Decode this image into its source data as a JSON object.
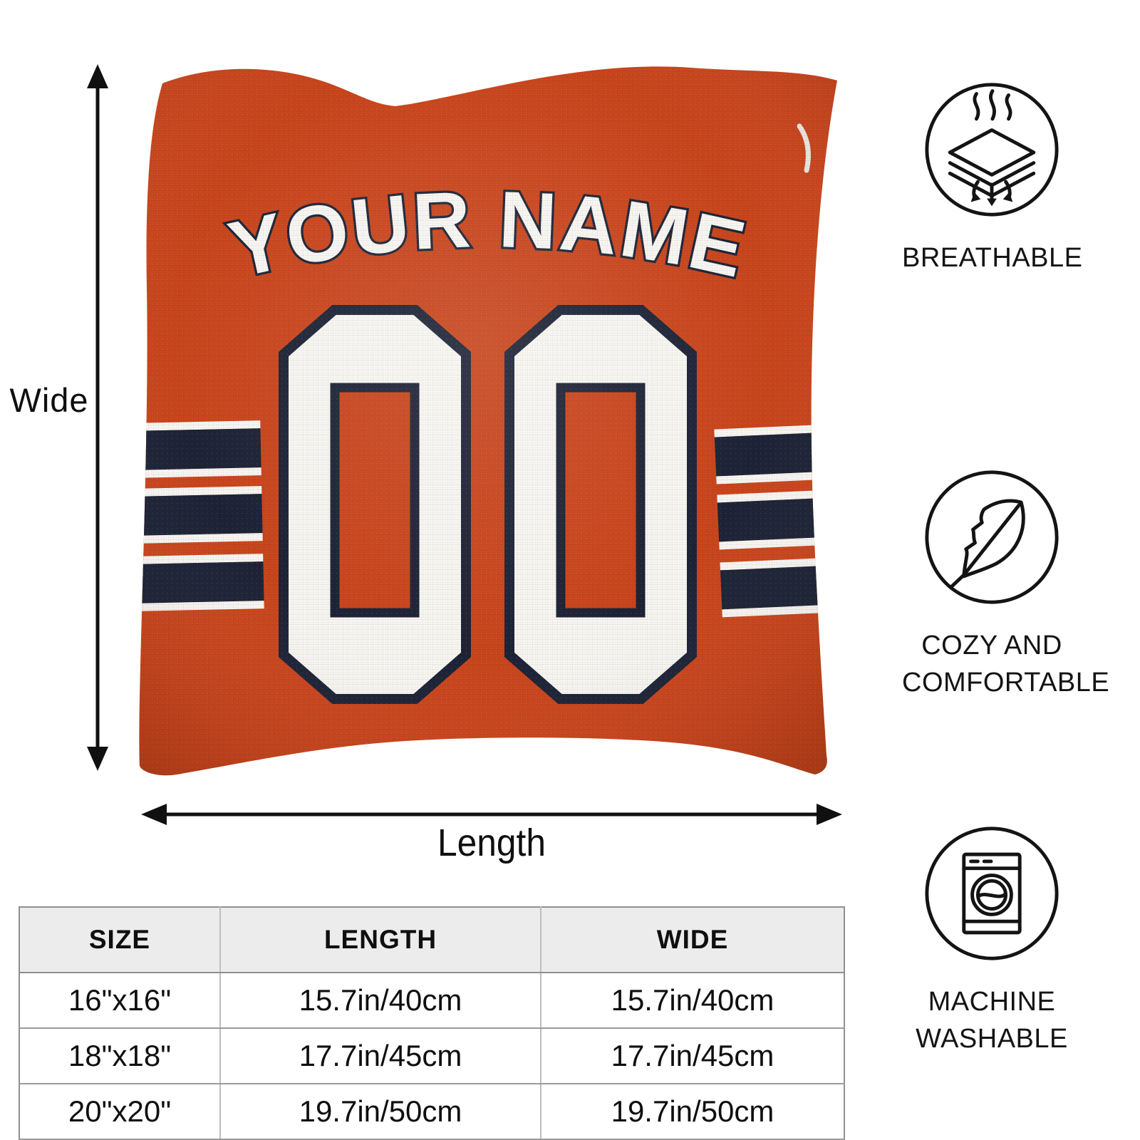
{
  "pillow": {
    "name_text": "YOUR NAME",
    "number": "00",
    "colors": {
      "orange": "#c9451c",
      "navy": "#1c2336",
      "white": "#f7f6f2"
    }
  },
  "dimensions": {
    "wide_label": "Wide",
    "length_label": "Length"
  },
  "features": [
    {
      "icon": "breathable-layers-icon",
      "label": "BREATHABLE"
    },
    {
      "icon": "feather-icon",
      "label": "COZY AND COMFORTABLE"
    },
    {
      "icon": "washing-machine-icon",
      "label": "MACHINE WASHABLE"
    }
  ],
  "size_table": {
    "headers": [
      "SIZE",
      "LENGTH",
      "WIDE"
    ],
    "rows": [
      {
        "size": "16\"x16\"",
        "length": "15.7in/40cm",
        "wide": "15.7in/40cm"
      },
      {
        "size": "18\"x18\"",
        "length": "17.7in/45cm",
        "wide": "17.7in/45cm"
      },
      {
        "size": "20\"x20\"",
        "length": "19.7in/50cm",
        "wide": "19.7in/50cm"
      }
    ]
  }
}
